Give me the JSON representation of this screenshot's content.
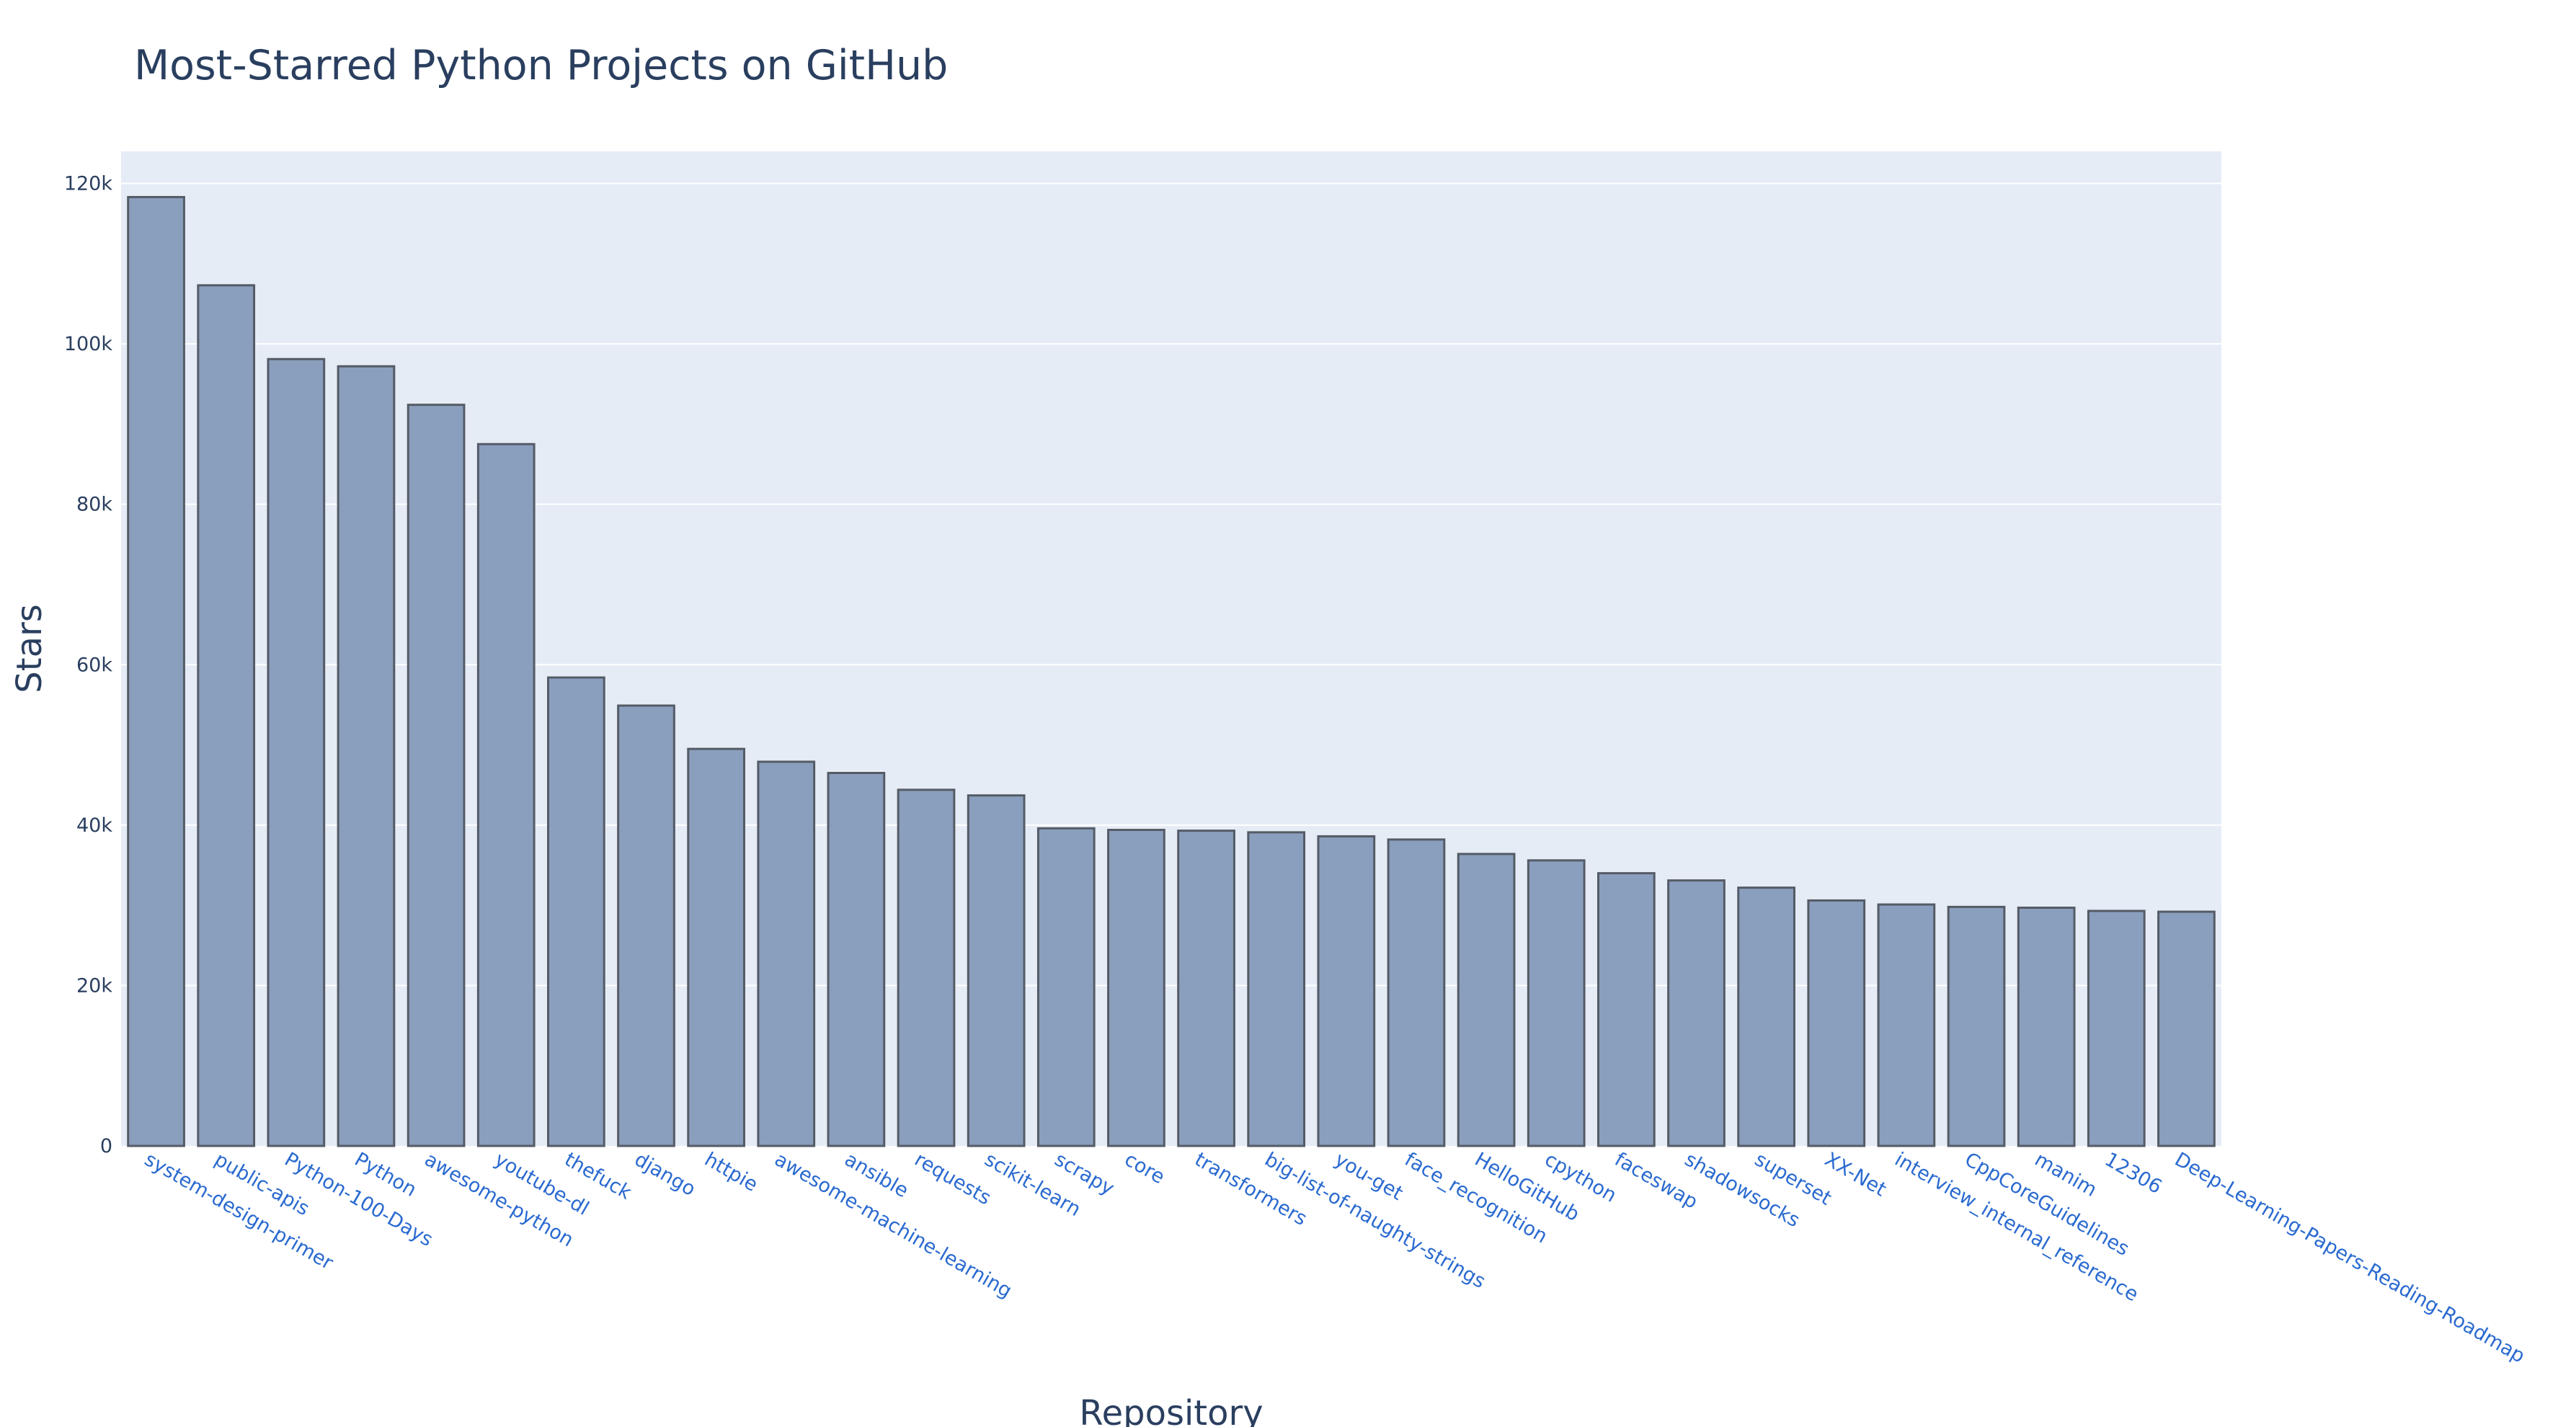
{
  "chart_data": {
    "type": "bar",
    "title": "Most-Starred Python Projects on GitHub",
    "xlabel": "Repository",
    "ylabel": "Stars",
    "ylim": [
      0,
      124000
    ],
    "yticks": [
      0,
      20000,
      40000,
      60000,
      80000,
      100000,
      120000
    ],
    "ytick_labels": [
      "0",
      "20k",
      "40k",
      "60k",
      "80k",
      "100k",
      "120k"
    ],
    "grid": true,
    "categories": [
      "system-design-primer",
      "public-apis",
      "Python-100-Days",
      "Python",
      "awesome-python",
      "youtube-dl",
      "thefuck",
      "django",
      "httpie",
      "awesome-machine-learning",
      "ansible",
      "requests",
      "scikit-learn",
      "scrapy",
      "core",
      "transformers",
      "big-list-of-naughty-strings",
      "you-get",
      "face_recognition",
      "HelloGitHub",
      "cpython",
      "faceswap",
      "shadowsocks",
      "superset",
      "XX-Net",
      "interview_internal_reference",
      "CppCoreGuidelines",
      "manim",
      "12306",
      "Deep-Learning-Papers-Reading-Roadmap"
    ],
    "values": [
      118300,
      107300,
      98100,
      97200,
      92400,
      87500,
      58400,
      54900,
      49500,
      47900,
      46500,
      44400,
      43700,
      39600,
      39400,
      39300,
      39100,
      38600,
      38200,
      36400,
      35600,
      34000,
      33100,
      32200,
      30600,
      30100,
      29800,
      29700,
      29300,
      29200
    ],
    "colors": {
      "bar_fill": "#8a9fbd",
      "bar_stroke": "#555b66",
      "plot_bg": "#e5ecf6",
      "tick_x": "#2a6ad0",
      "text": "#2a3f5f"
    }
  }
}
